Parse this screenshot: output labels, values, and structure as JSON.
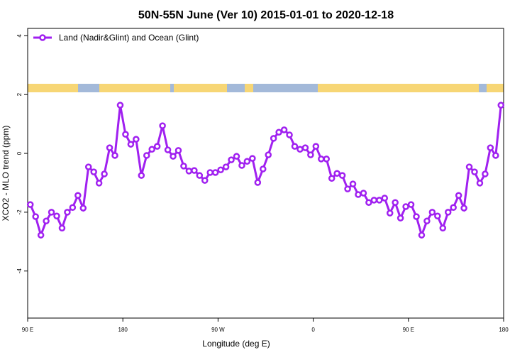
{
  "chart_data": {
    "type": "line",
    "title": "50N-55N June (Ver 10)   2015-01-01 to 2020-12-18",
    "xlabel": "Longitude (deg E)",
    "ylabel": "XCO2 - MLO trend (ppm)",
    "xlim": [
      90,
      540
    ],
    "ylim": [
      -5.6,
      4.25
    ],
    "xticks": [
      {
        "value": 90,
        "label": "90 E"
      },
      180,
      {
        "value": 270,
        "label": "90 W"
      },
      {
        "value": 360,
        "label": "0"
      },
      {
        "value": 450,
        "label": "90 E"
      },
      {
        "value": 540,
        "label": "180"
      }
    ],
    "yticks": [
      -4,
      -2,
      0,
      2,
      4
    ],
    "legend": "top-left",
    "x": [
      92.5,
      97.5,
      102.5,
      107.5,
      112.5,
      117.5,
      122.5,
      127.5,
      132.5,
      137.5,
      142.5,
      147.5,
      152.5,
      157.5,
      162.5,
      167.5,
      172.5,
      177.5,
      182.5,
      187.5,
      192.5,
      197.5,
      202.5,
      207.5,
      212.5,
      217.5,
      222.5,
      227.5,
      232.5,
      237.5,
      242.5,
      247.5,
      252.5,
      257.5,
      262.5,
      267.5,
      272.5,
      277.5,
      282.5,
      287.5,
      292.5,
      297.5,
      302.5,
      307.5,
      312.5,
      317.5,
      322.5,
      327.5,
      332.5,
      337.5,
      342.5,
      347.5,
      352.5,
      357.5,
      362.5,
      367.5,
      372.5,
      377.5,
      382.5,
      387.5,
      392.5,
      397.5,
      402.5,
      407.5,
      412.5,
      417.5,
      422.5,
      427.5,
      432.5,
      437.5,
      442.5,
      447.5,
      452.5,
      457.5,
      462.5,
      467.5,
      472.5,
      477.5,
      482.5,
      487.5,
      492.5,
      497.5,
      502.5,
      507.5,
      512.5,
      517.5,
      522.5,
      527.5,
      532.5,
      537.5
    ],
    "series": [
      {
        "name": "Land (Nadir&Glint) and Ocean (Glint)",
        "color": "#a020f0",
        "values": [
          -1.74,
          -2.15,
          -2.78,
          -2.3,
          -2.0,
          -2.13,
          -2.54,
          -2.0,
          -1.84,
          -1.43,
          -1.86,
          -0.46,
          -0.63,
          -1.01,
          -0.7,
          0.19,
          -0.07,
          1.64,
          0.65,
          0.31,
          0.48,
          -0.75,
          -0.07,
          0.14,
          0.24,
          0.94,
          0.12,
          -0.1,
          0.1,
          -0.43,
          -0.6,
          -0.58,
          -0.75,
          -0.92,
          -0.65,
          -0.65,
          -0.56,
          -0.46,
          -0.22,
          -0.1,
          -0.41,
          -0.27,
          -0.17,
          -0.99,
          -0.53,
          -0.05,
          0.51,
          0.72,
          0.8,
          0.63,
          0.24,
          0.14,
          0.19,
          -0.05,
          0.24,
          -0.19,
          -0.19,
          -0.85,
          -0.68,
          -0.75,
          -1.21,
          -1.04,
          -1.4,
          -1.35,
          -1.67,
          -1.59,
          -1.59,
          -1.52,
          -2.03,
          -1.67,
          -2.2,
          -1.81,
          -1.74,
          -2.15,
          -2.78,
          -2.3,
          -2.0,
          -2.13,
          -2.54,
          -2.0,
          -1.84,
          -1.43,
          -1.86,
          -0.46,
          -0.63,
          -1.01,
          -0.7,
          0.19,
          -0.07,
          1.64
        ]
      }
    ]
  }
}
